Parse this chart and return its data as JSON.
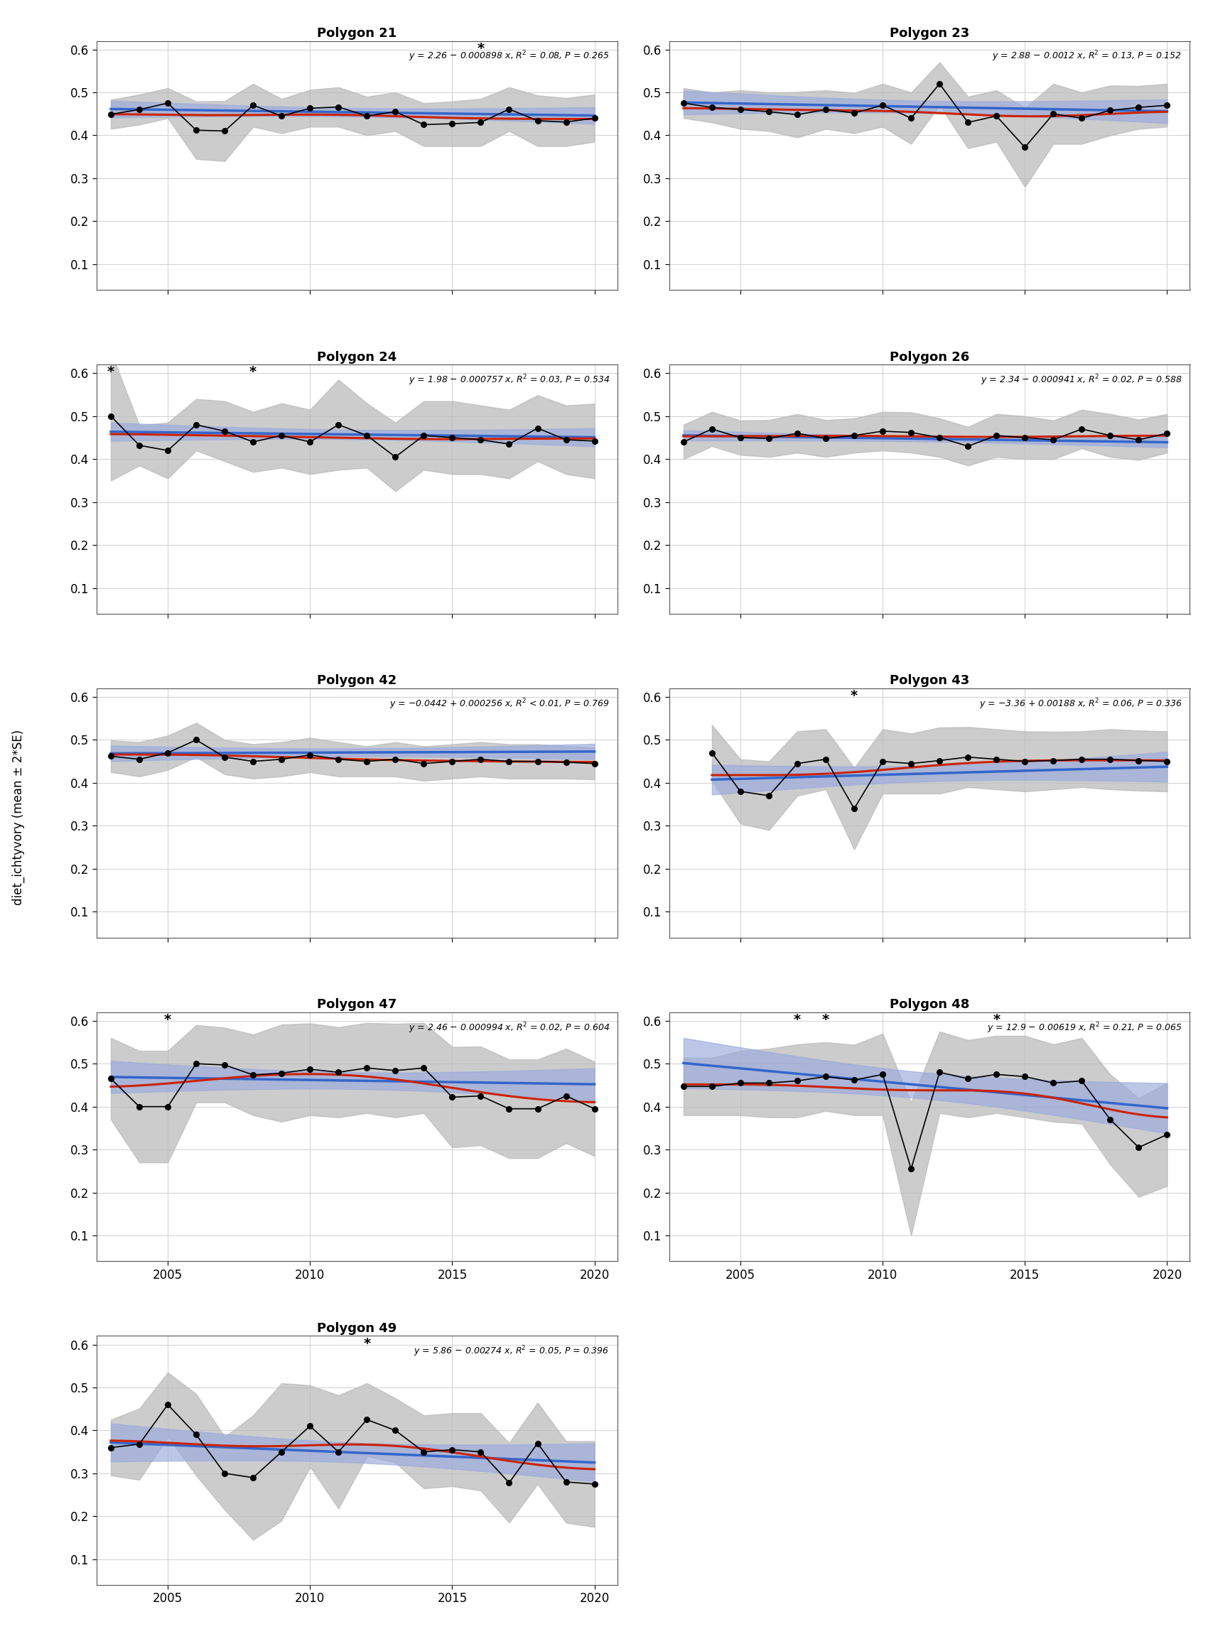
{
  "panels": [
    {
      "title": "Polygon 21",
      "eq": "y = 2.26 − 0.000898 x, R² = 0.08, P = 0.265",
      "slope": -0.000898,
      "intercept": 2.26,
      "years": [
        2003,
        2004,
        2005,
        2006,
        2007,
        2008,
        2009,
        2010,
        2011,
        2012,
        2013,
        2014,
        2015,
        2016,
        2017,
        2018,
        2019,
        2020
      ],
      "means": [
        0.449,
        0.46,
        0.475,
        0.412,
        0.41,
        0.47,
        0.445,
        0.463,
        0.466,
        0.445,
        0.455,
        0.425,
        0.427,
        0.43,
        0.461,
        0.434,
        0.431,
        0.44
      ],
      "lower": [
        0.415,
        0.425,
        0.44,
        0.345,
        0.34,
        0.42,
        0.405,
        0.42,
        0.42,
        0.4,
        0.41,
        0.375,
        0.375,
        0.375,
        0.41,
        0.375,
        0.375,
        0.385
      ],
      "upper": [
        0.483,
        0.495,
        0.51,
        0.479,
        0.48,
        0.52,
        0.485,
        0.506,
        0.512,
        0.49,
        0.5,
        0.475,
        0.479,
        0.485,
        0.512,
        0.493,
        0.487,
        0.495
      ],
      "low_sample_years": [
        2016
      ]
    },
    {
      "title": "Polygon 23",
      "eq": "y = 2.88 − 0.0012 x, R² = 0.13, P = 0.152",
      "slope": -0.0012,
      "intercept": 2.88,
      "years": [
        2003,
        2004,
        2005,
        2006,
        2007,
        2008,
        2009,
        2010,
        2011,
        2012,
        2013,
        2014,
        2015,
        2016,
        2017,
        2018,
        2019,
        2020
      ],
      "means": [
        0.475,
        0.465,
        0.46,
        0.455,
        0.448,
        0.46,
        0.452,
        0.47,
        0.44,
        0.52,
        0.43,
        0.445,
        0.372,
        0.45,
        0.44,
        0.458,
        0.465,
        0.47
      ],
      "lower": [
        0.44,
        0.43,
        0.415,
        0.41,
        0.395,
        0.415,
        0.405,
        0.42,
        0.38,
        0.47,
        0.37,
        0.385,
        0.28,
        0.38,
        0.38,
        0.4,
        0.415,
        0.42
      ],
      "upper": [
        0.51,
        0.5,
        0.505,
        0.5,
        0.501,
        0.505,
        0.499,
        0.52,
        0.5,
        0.57,
        0.49,
        0.505,
        0.464,
        0.52,
        0.5,
        0.516,
        0.515,
        0.52
      ],
      "low_sample_years": []
    },
    {
      "title": "Polygon 24",
      "eq": "y = 1.98 − 0.000757 x, R² = 0.03, P = 0.534",
      "slope": -0.000757,
      "intercept": 1.98,
      "years": [
        2003,
        2004,
        2005,
        2006,
        2007,
        2008,
        2009,
        2010,
        2011,
        2012,
        2013,
        2014,
        2015,
        2016,
        2017,
        2018,
        2019,
        2020
      ],
      "means": [
        0.5,
        0.432,
        0.42,
        0.48,
        0.465,
        0.44,
        0.455,
        0.44,
        0.48,
        0.455,
        0.405,
        0.455,
        0.45,
        0.445,
        0.435,
        0.472,
        0.445,
        0.442
      ],
      "lower": [
        0.35,
        0.385,
        0.355,
        0.42,
        0.395,
        0.37,
        0.38,
        0.365,
        0.375,
        0.38,
        0.325,
        0.375,
        0.365,
        0.365,
        0.355,
        0.395,
        0.365,
        0.355
      ],
      "upper": [
        0.65,
        0.479,
        0.485,
        0.54,
        0.535,
        0.51,
        0.53,
        0.515,
        0.585,
        0.53,
        0.485,
        0.535,
        0.535,
        0.525,
        0.515,
        0.549,
        0.525,
        0.529
      ],
      "low_sample_years": [
        2003,
        2008
      ]
    },
    {
      "title": "Polygon 26",
      "eq": "y = 2.34 − 0.000941 x, R² = 0.02, P = 0.588",
      "slope": -0.000941,
      "intercept": 2.34,
      "years": [
        2003,
        2004,
        2005,
        2006,
        2007,
        2008,
        2009,
        2010,
        2011,
        2012,
        2013,
        2014,
        2015,
        2016,
        2017,
        2018,
        2019,
        2020
      ],
      "means": [
        0.44,
        0.47,
        0.45,
        0.448,
        0.46,
        0.448,
        0.455,
        0.465,
        0.462,
        0.45,
        0.43,
        0.455,
        0.45,
        0.445,
        0.47,
        0.455,
        0.445,
        0.46
      ],
      "lower": [
        0.4,
        0.43,
        0.41,
        0.405,
        0.415,
        0.405,
        0.415,
        0.42,
        0.415,
        0.405,
        0.385,
        0.405,
        0.4,
        0.4,
        0.425,
        0.405,
        0.398,
        0.415
      ],
      "upper": [
        0.48,
        0.51,
        0.49,
        0.491,
        0.505,
        0.491,
        0.495,
        0.51,
        0.509,
        0.495,
        0.475,
        0.505,
        0.5,
        0.49,
        0.515,
        0.505,
        0.492,
        0.505
      ],
      "low_sample_years": []
    },
    {
      "title": "Polygon 42",
      "eq": "y = −0.0442 + 0.000256 x, R² < 0.01, P = 0.769",
      "slope": 0.000256,
      "intercept": -0.0442,
      "years": [
        2003,
        2004,
        2005,
        2006,
        2007,
        2008,
        2009,
        2010,
        2011,
        2012,
        2013,
        2014,
        2015,
        2016,
        2017,
        2018,
        2019,
        2020
      ],
      "means": [
        0.462,
        0.455,
        0.47,
        0.5,
        0.46,
        0.45,
        0.455,
        0.465,
        0.455,
        0.45,
        0.455,
        0.445,
        0.45,
        0.455,
        0.45,
        0.45,
        0.448,
        0.445
      ],
      "lower": [
        0.425,
        0.415,
        0.43,
        0.46,
        0.42,
        0.41,
        0.415,
        0.425,
        0.415,
        0.415,
        0.415,
        0.405,
        0.41,
        0.415,
        0.41,
        0.41,
        0.41,
        0.408
      ],
      "upper": [
        0.499,
        0.495,
        0.51,
        0.54,
        0.5,
        0.49,
        0.495,
        0.505,
        0.495,
        0.485,
        0.495,
        0.485,
        0.49,
        0.495,
        0.49,
        0.49,
        0.486,
        0.482
      ],
      "low_sample_years": []
    },
    {
      "title": "Polygon 43",
      "eq": "y = −3.36 + 0.00188 x, R² = 0.06, P = 0.336",
      "slope": 0.00188,
      "intercept": -3.36,
      "years": [
        2004,
        2005,
        2006,
        2007,
        2008,
        2009,
        2010,
        2011,
        2012,
        2013,
        2014,
        2015,
        2016,
        2017,
        2018,
        2019,
        2020
      ],
      "means": [
        0.47,
        0.38,
        0.37,
        0.445,
        0.455,
        0.34,
        0.45,
        0.445,
        0.452,
        0.46,
        0.455,
        0.45,
        0.452,
        0.455,
        0.455,
        0.452,
        0.45
      ],
      "lower": [
        0.405,
        0.305,
        0.29,
        0.37,
        0.385,
        0.245,
        0.375,
        0.375,
        0.375,
        0.39,
        0.385,
        0.38,
        0.385,
        0.39,
        0.385,
        0.382,
        0.38
      ],
      "upper": [
        0.535,
        0.455,
        0.45,
        0.52,
        0.525,
        0.435,
        0.525,
        0.515,
        0.529,
        0.53,
        0.525,
        0.52,
        0.519,
        0.52,
        0.525,
        0.522,
        0.52
      ],
      "low_sample_years": [
        2009
      ]
    },
    {
      "title": "Polygon 47",
      "eq": "y = 2.46 − 0.000994 x, R² = 0.02, P = 0.604",
      "slope": -0.000994,
      "intercept": 2.46,
      "years": [
        2003,
        2004,
        2005,
        2006,
        2007,
        2008,
        2009,
        2010,
        2011,
        2012,
        2013,
        2014,
        2015,
        2016,
        2017,
        2018,
        2019,
        2020
      ],
      "means": [
        0.465,
        0.4,
        0.4,
        0.5,
        0.497,
        0.474,
        0.478,
        0.487,
        0.48,
        0.49,
        0.484,
        0.49,
        0.422,
        0.425,
        0.395,
        0.395,
        0.425,
        0.395
      ],
      "lower": [
        0.37,
        0.27,
        0.27,
        0.41,
        0.41,
        0.38,
        0.365,
        0.38,
        0.375,
        0.385,
        0.375,
        0.385,
        0.305,
        0.31,
        0.28,
        0.28,
        0.315,
        0.285
      ],
      "upper": [
        0.56,
        0.53,
        0.53,
        0.59,
        0.584,
        0.568,
        0.591,
        0.594,
        0.585,
        0.595,
        0.593,
        0.595,
        0.539,
        0.54,
        0.51,
        0.51,
        0.535,
        0.505
      ],
      "low_sample_years": [
        2005
      ]
    },
    {
      "title": "Polygon 48",
      "eq": "y = 12.9 − 0.00619 x, R² = 0.21, P = 0.065",
      "slope": -0.00619,
      "intercept": 12.9,
      "years": [
        2003,
        2004,
        2005,
        2006,
        2007,
        2008,
        2009,
        2010,
        2011,
        2012,
        2013,
        2014,
        2015,
        2016,
        2017,
        2018,
        2019,
        2020
      ],
      "means": [
        0.447,
        0.447,
        0.455,
        0.455,
        0.46,
        0.47,
        0.462,
        0.475,
        0.255,
        0.48,
        0.465,
        0.475,
        0.47,
        0.455,
        0.46,
        0.37,
        0.305,
        0.335
      ],
      "lower": [
        0.38,
        0.38,
        0.38,
        0.375,
        0.375,
        0.39,
        0.38,
        0.38,
        0.1,
        0.385,
        0.375,
        0.385,
        0.375,
        0.365,
        0.36,
        0.265,
        0.19,
        0.215
      ],
      "upper": [
        0.514,
        0.514,
        0.53,
        0.535,
        0.545,
        0.55,
        0.544,
        0.57,
        0.41,
        0.575,
        0.555,
        0.565,
        0.565,
        0.545,
        0.56,
        0.475,
        0.42,
        0.455
      ],
      "low_sample_years": [
        2007,
        2008,
        2014
      ]
    },
    {
      "title": "Polygon 49",
      "eq": "y = 5.86 − 0.00274 x, R² = 0.05, P = 0.396",
      "slope": -0.00274,
      "intercept": 5.86,
      "years": [
        2003,
        2004,
        2005,
        2006,
        2007,
        2008,
        2009,
        2010,
        2011,
        2012,
        2013,
        2014,
        2015,
        2016,
        2017,
        2018,
        2019,
        2020
      ],
      "means": [
        0.36,
        0.368,
        0.46,
        0.39,
        0.3,
        0.29,
        0.35,
        0.41,
        0.35,
        0.425,
        0.4,
        0.35,
        0.355,
        0.35,
        0.278,
        0.37,
        0.28,
        0.275
      ],
      "lower": [
        0.295,
        0.285,
        0.385,
        0.295,
        0.215,
        0.145,
        0.19,
        0.315,
        0.218,
        0.34,
        0.325,
        0.265,
        0.27,
        0.26,
        0.185,
        0.275,
        0.185,
        0.175
      ],
      "upper": [
        0.425,
        0.451,
        0.535,
        0.485,
        0.385,
        0.435,
        0.51,
        0.505,
        0.482,
        0.51,
        0.475,
        0.435,
        0.44,
        0.44,
        0.371,
        0.465,
        0.375,
        0.375
      ],
      "low_sample_years": [
        2012
      ]
    }
  ],
  "ylabel": "diet_ichtyvory (mean ± 2*SE)",
  "ylim": [
    0.04,
    0.62
  ],
  "yticks": [
    0.1,
    0.2,
    0.3,
    0.4,
    0.5,
    0.6
  ],
  "bg_color": "#ffffff",
  "grid_color": "#d0d0d0",
  "data_color": "#000000",
  "shade_color": "#bbbbbb",
  "blue_line_color": "#3366cc",
  "blue_shade_color": "#99aadd",
  "red_line_color": "#cc2200"
}
